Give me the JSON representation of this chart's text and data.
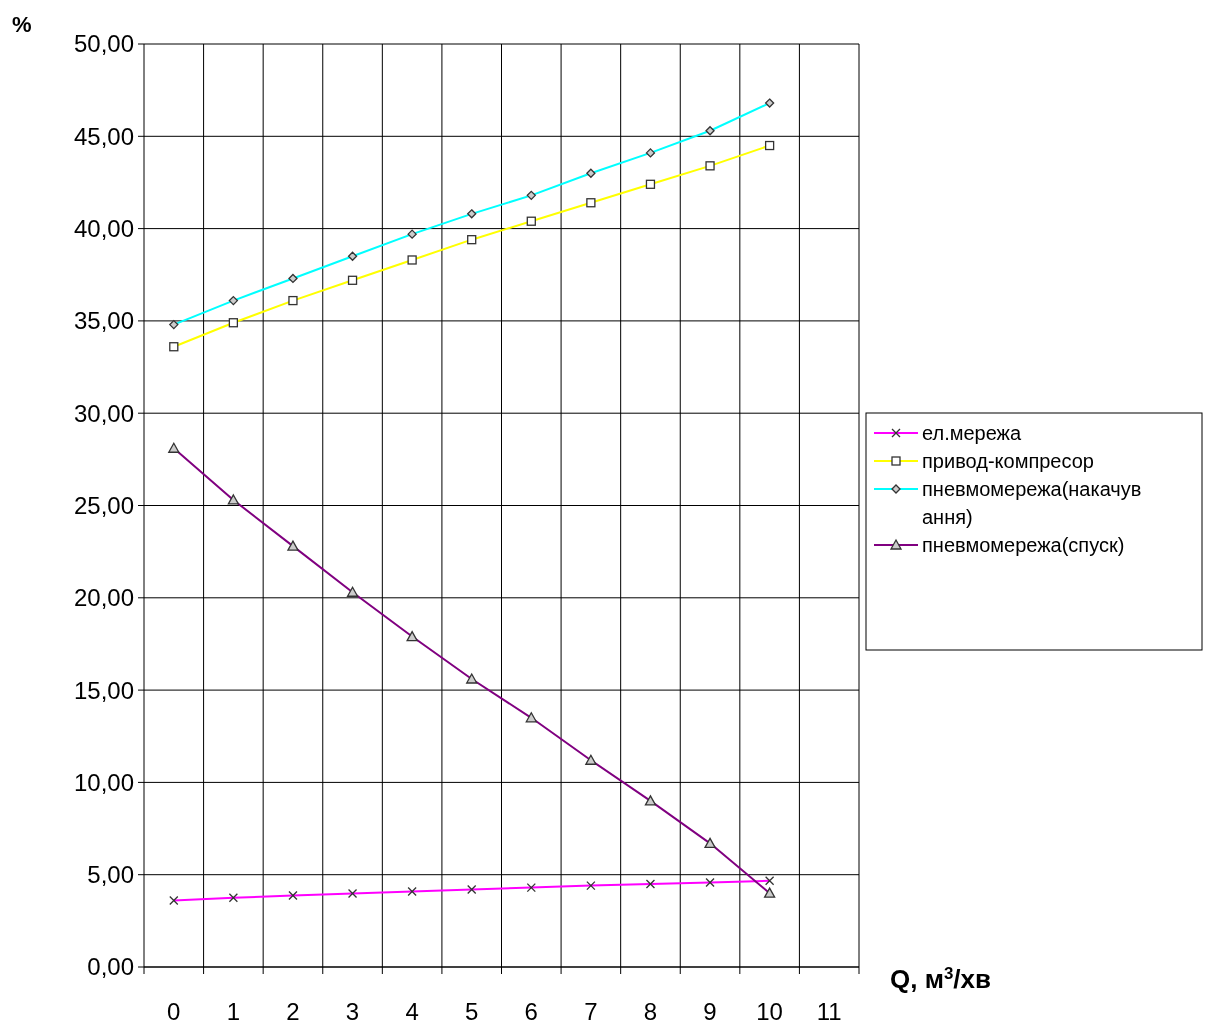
{
  "chart_data": {
    "type": "line",
    "ylabel": "%",
    "xlabel": "Q, м$^{3}$/хв",
    "categories": [
      "0",
      "1",
      "2",
      "3",
      "4",
      "5",
      "6",
      "7",
      "8",
      "9",
      "10",
      "11"
    ],
    "ylim": [
      0,
      50
    ],
    "yticks": [
      {
        "value": 0,
        "label": "0,00"
      },
      {
        "value": 5,
        "label": "5,00"
      },
      {
        "value": 10,
        "label": "10,00"
      },
      {
        "value": 15,
        "label": "15,00"
      },
      {
        "value": 20,
        "label": "20,00"
      },
      {
        "value": 25,
        "label": "25,00"
      },
      {
        "value": 30,
        "label": "30,00"
      },
      {
        "value": 35,
        "label": "35,00"
      },
      {
        "value": 40,
        "label": "40,00"
      },
      {
        "value": 45,
        "label": "45,00"
      },
      {
        "value": 50,
        "label": "50,00"
      }
    ],
    "grid": true,
    "legend": "right",
    "series": [
      {
        "name": "ел.мережа",
        "color": "#ff00ff",
        "marker": "cross",
        "values": [
          3.6,
          3.75,
          3.87,
          3.98,
          4.09,
          4.2,
          4.3,
          4.41,
          4.5,
          4.58,
          4.67,
          null
        ]
      },
      {
        "name": "привод-компресор",
        "color": "#ffff00",
        "marker": "square",
        "values": [
          33.6,
          34.9,
          36.1,
          37.2,
          38.3,
          39.4,
          40.4,
          41.4,
          42.4,
          43.4,
          44.5,
          null
        ]
      },
      {
        "name": "пневмомережа(накачування)",
        "color": "#00ffff",
        "marker": "diamond",
        "values": [
          34.8,
          36.1,
          37.3,
          38.5,
          39.7,
          40.8,
          41.8,
          43.0,
          44.1,
          45.3,
          46.8,
          null
        ]
      },
      {
        "name": "пневмомережа(спуск)",
        "color": "#800080",
        "marker": "triangle",
        "values": [
          28.1,
          25.3,
          22.8,
          20.3,
          17.9,
          15.6,
          13.5,
          11.2,
          9.0,
          6.7,
          4.0,
          null
        ]
      }
    ]
  }
}
